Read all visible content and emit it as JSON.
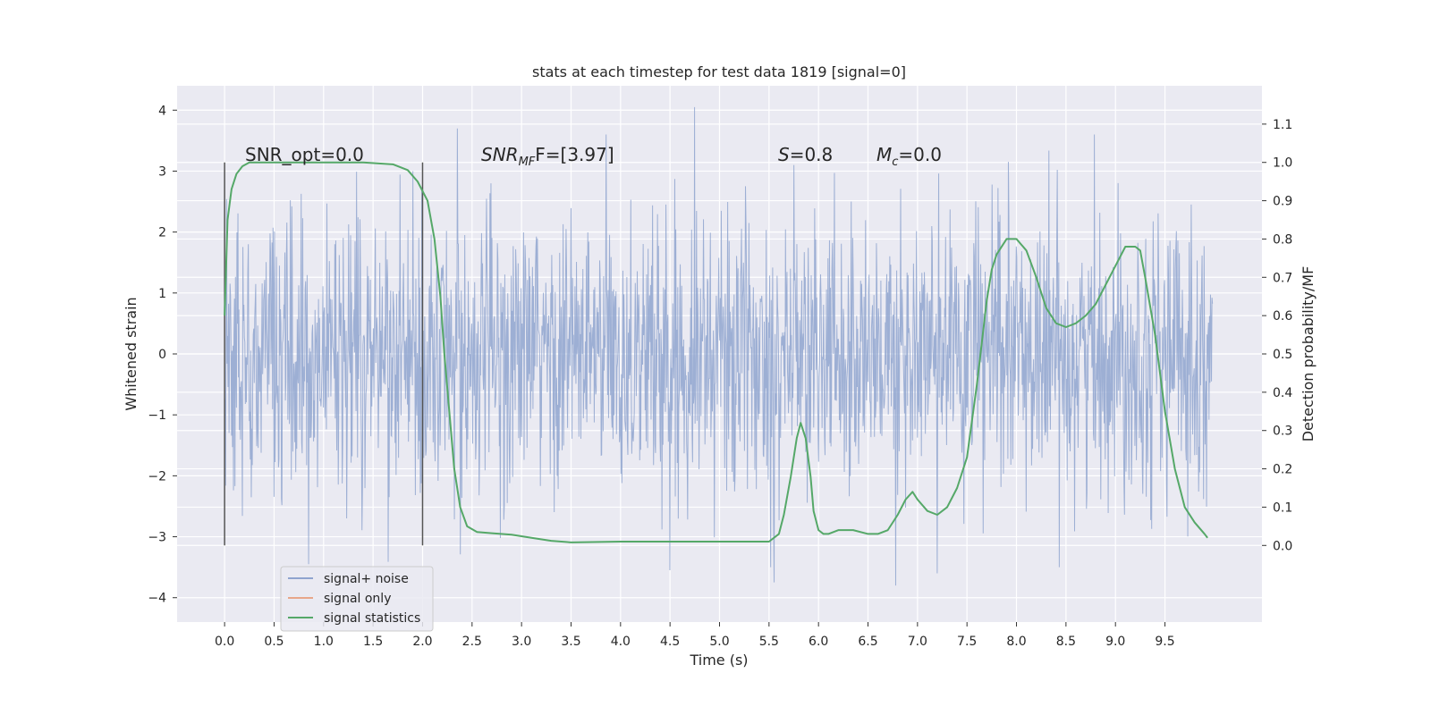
{
  "chart_data": {
    "type": "line",
    "title": "stats at each timestep for test data 1819 [signal=0]",
    "xlabel": "Time (s)",
    "ylabel": "Whitened strain",
    "y2label": "Detection probability/MF",
    "xlim": [
      -0.48,
      10.48
    ],
    "ylim": [
      -4.4,
      4.4
    ],
    "y2lim": [
      -0.2,
      1.2
    ],
    "grid": true,
    "legend_position": "lower-left",
    "x_ticks": [
      "0.0",
      "0.5",
      "1.0",
      "1.5",
      "2.0",
      "2.5",
      "3.0",
      "3.5",
      "4.0",
      "4.5",
      "5.0",
      "5.5",
      "6.0",
      "6.5",
      "7.0",
      "7.5",
      "8.0",
      "8.5",
      "9.0",
      "9.5"
    ],
    "y_ticks": [
      "4",
      "3",
      "2",
      "1",
      "0",
      "−1",
      "−2",
      "−3",
      "−4"
    ],
    "y2_ticks": [
      "1.1",
      "1.0",
      "0.9",
      "0.8",
      "0.7",
      "0.6",
      "0.5",
      "0.4",
      "0.3",
      "0.2",
      "0.1",
      "0.0"
    ],
    "annotations": {
      "snr_opt": "SNR_opt=0.0",
      "snr_mf_main": "SNR",
      "snr_mf_sub": "MF",
      "snr_mf_value": "F=[3.97]",
      "s_main": "S",
      "s_value": "=0.8",
      "mc_main": "M",
      "mc_sub": "c",
      "mc_value": "=0.0"
    },
    "vertical_markers_x": [
      0.0,
      2.0
    ],
    "series": [
      {
        "name": "signal+ noise",
        "color": "#8fa4cf",
        "x_start": 0.0,
        "x_end": 9.98,
        "envelope": "whitened gaussian noise, approx. within [-3.8, 4.05]",
        "peaks": [
          {
            "x": 4.75,
            "y": 4.05
          },
          {
            "x": 5.75,
            "y": 3.1
          },
          {
            "x": 1.9,
            "y": 3.0
          },
          {
            "x": 2.35,
            "y": 3.7
          },
          {
            "x": 6.78,
            "y": -3.8
          },
          {
            "x": 5.55,
            "y": -3.75
          },
          {
            "x": 4.5,
            "y": -3.55
          },
          {
            "x": 7.2,
            "y": -3.6
          },
          {
            "x": 0.85,
            "y": -3.45
          }
        ]
      },
      {
        "name": "signal only",
        "color": "#e8a68a",
        "x": [],
        "y": []
      },
      {
        "name": "signal statistics",
        "color": "#55a868",
        "axis": "right",
        "x": [
          0.0,
          0.03,
          0.07,
          0.12,
          0.18,
          0.25,
          0.4,
          0.6,
          1.0,
          1.4,
          1.7,
          1.85,
          1.95,
          2.05,
          2.12,
          2.18,
          2.22,
          2.27,
          2.32,
          2.38,
          2.45,
          2.55,
          2.7,
          2.9,
          3.1,
          3.3,
          3.5,
          4.0,
          4.5,
          5.0,
          5.5,
          5.6,
          5.65,
          5.72,
          5.78,
          5.82,
          5.87,
          5.92,
          5.95,
          6.0,
          6.05,
          6.1,
          6.2,
          6.35,
          6.5,
          6.6,
          6.7,
          6.8,
          6.88,
          6.95,
          7.0,
          7.1,
          7.2,
          7.3,
          7.4,
          7.5,
          7.6,
          7.7,
          7.75,
          7.8,
          7.9,
          8.0,
          8.1,
          8.2,
          8.3,
          8.4,
          8.5,
          8.6,
          8.7,
          8.8,
          8.9,
          9.0,
          9.1,
          9.2,
          9.25,
          9.3,
          9.4,
          9.5,
          9.6,
          9.7,
          9.8,
          9.9,
          9.93
        ],
        "y": [
          0.6,
          0.85,
          0.93,
          0.97,
          0.99,
          1.0,
          1.0,
          1.0,
          1.0,
          1.0,
          0.995,
          0.98,
          0.95,
          0.9,
          0.8,
          0.65,
          0.5,
          0.35,
          0.2,
          0.1,
          0.05,
          0.035,
          0.032,
          0.028,
          0.02,
          0.012,
          0.008,
          0.01,
          0.01,
          0.01,
          0.01,
          0.03,
          0.08,
          0.18,
          0.28,
          0.32,
          0.28,
          0.18,
          0.09,
          0.04,
          0.03,
          0.03,
          0.04,
          0.04,
          0.03,
          0.03,
          0.04,
          0.08,
          0.12,
          0.14,
          0.12,
          0.09,
          0.08,
          0.1,
          0.15,
          0.23,
          0.42,
          0.64,
          0.72,
          0.76,
          0.8,
          0.8,
          0.77,
          0.7,
          0.62,
          0.58,
          0.57,
          0.58,
          0.6,
          0.63,
          0.68,
          0.73,
          0.78,
          0.78,
          0.77,
          0.7,
          0.55,
          0.35,
          0.2,
          0.1,
          0.06,
          0.03,
          0.02
        ]
      }
    ]
  }
}
